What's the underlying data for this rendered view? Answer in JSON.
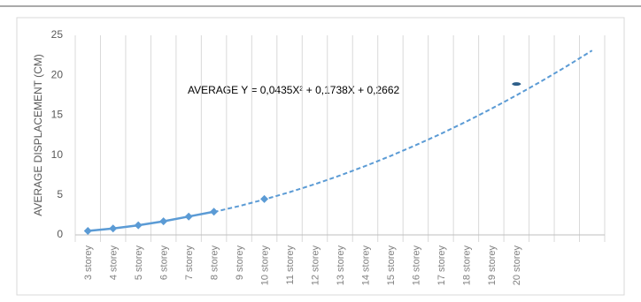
{
  "chart_data": {
    "type": "line",
    "y_label": "AVERAGE DISPLACEMENT (CM)",
    "annotation": "AVERAGE Y = 0,0435X² + 0,1738X + 0,2662",
    "categories": [
      "3 storey",
      "4 storey",
      "5 storey",
      "6 storey",
      "7 storey",
      "8 storey",
      "9 storey",
      "10 storey",
      "11 storey",
      "12 storey",
      "13 storey",
      "14 storey",
      "15 storey",
      "16 storey",
      "17 storey",
      "18 storey",
      "19 storey",
      "20 storey",
      null,
      null,
      null
    ],
    "series": [
      {
        "color": "#5b9bd5",
        "line": "solid",
        "marker": "diamond",
        "values": [
          0.5,
          0.8,
          1.2,
          1.7,
          2.3,
          2.9,
          null,
          null,
          null,
          null,
          null,
          null,
          null,
          null,
          null,
          null,
          null,
          null,
          null,
          null,
          null
        ]
      },
      {
        "color": "#5b9bd5",
        "line": "none",
        "marker": "diamond",
        "values": [
          null,
          null,
          null,
          null,
          null,
          null,
          null,
          4.5,
          null,
          null,
          null,
          null,
          null,
          null,
          null,
          null,
          null,
          null,
          null,
          null,
          null
        ]
      },
      {
        "color": "#2e5f8a",
        "line": "none",
        "marker": "ellipse",
        "values": [
          null,
          null,
          null,
          null,
          null,
          null,
          null,
          null,
          null,
          null,
          null,
          null,
          null,
          null,
          null,
          null,
          null,
          18.9,
          null,
          null,
          null
        ]
      },
      {
        "color": "#5b9bd5",
        "line": "dashed",
        "marker": "none",
        "values": [
          null,
          null,
          null,
          null,
          null,
          2.87,
          3.61,
          4.44,
          5.35,
          6.35,
          7.44,
          8.62,
          9.88,
          11.23,
          12.66,
          14.18,
          15.79,
          17.49,
          19.27,
          21.14,
          23.1
        ]
      }
    ],
    "ylim": [
      0,
      25
    ],
    "yticks": [
      0,
      5,
      10,
      15,
      20,
      25
    ],
    "grid": false,
    "xgrid": true
  }
}
